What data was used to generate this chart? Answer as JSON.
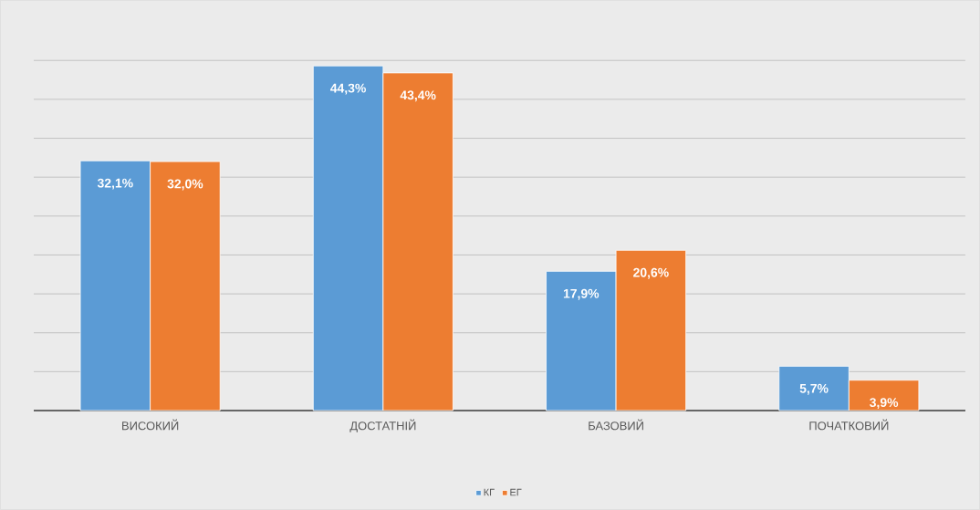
{
  "chart_data": {
    "type": "bar",
    "categories": [
      "ВИСОКИЙ",
      "ДОСТАТНІЙ",
      "БАЗОВИЙ",
      "ПОЧАТКОВИЙ"
    ],
    "series": [
      {
        "name": "КГ",
        "color": "#5b9bd5",
        "values": [
          32.1,
          44.3,
          17.9,
          5.7
        ],
        "value_labels": [
          "32,1%",
          "44,3%",
          "17,9%",
          "5,7%"
        ]
      },
      {
        "name": "ЕГ",
        "color": "#ed7d31",
        "values": [
          32.0,
          43.4,
          20.6,
          3.9
        ],
        "value_labels": [
          "32,0%",
          "43,4%",
          "20,6%",
          "3,9%"
        ]
      }
    ],
    "grid": "y",
    "legend": "bottom",
    "tick_labels": "x"
  }
}
